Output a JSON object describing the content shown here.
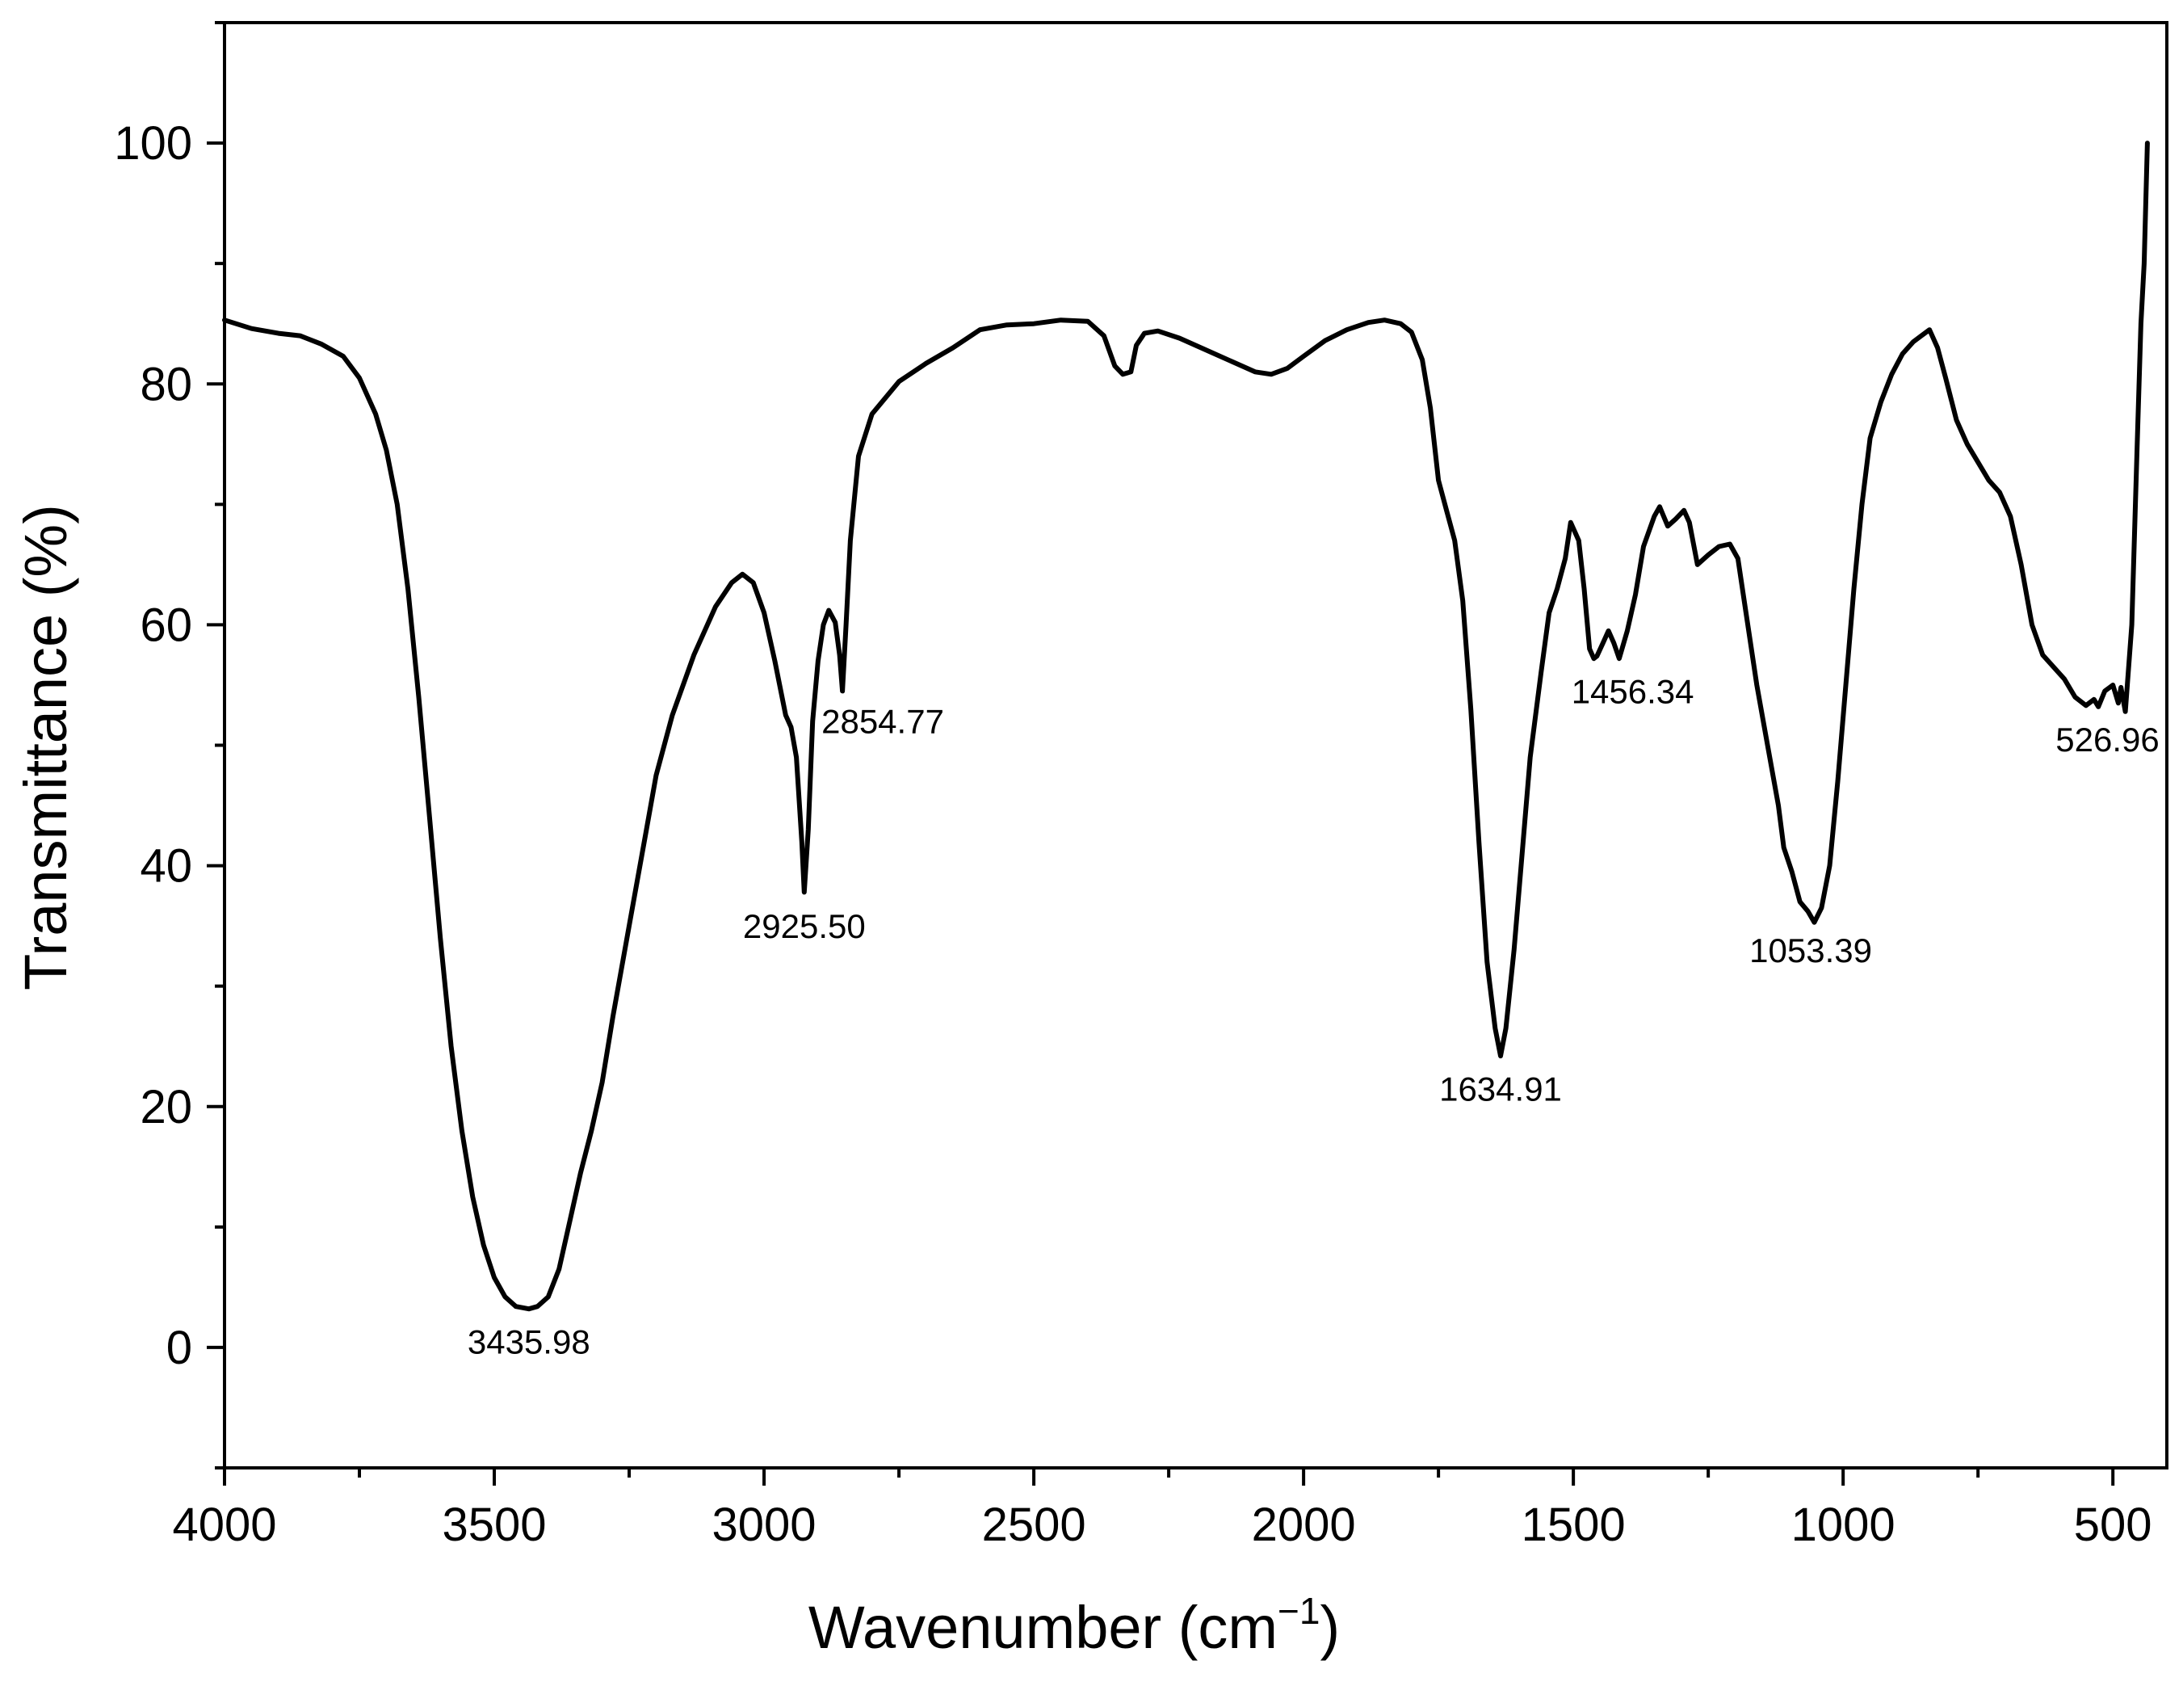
{
  "chart_data": {
    "type": "line",
    "title": "",
    "xlabel": "Wavenumber",
    "xlabel_unit": "(cm",
    "xlabel_unit_sup": "−1",
    "xlabel_unit_close": ")",
    "ylabel": "Transmittance (%)",
    "xlim": [
      4000,
      400
    ],
    "ylim": [
      -10,
      110
    ],
    "x_ticks": [
      4000,
      3500,
      3000,
      2500,
      2000,
      1500,
      1000,
      500
    ],
    "x_tick_labels": [
      "4000",
      "3500",
      "3000",
      "2500",
      "2000",
      "1500",
      "1000",
      "500"
    ],
    "y_ticks": [
      0,
      20,
      40,
      60,
      80,
      100
    ],
    "y_tick_labels": [
      "0",
      "20",
      "40",
      "60",
      "80",
      "100"
    ],
    "grid": false,
    "legend": "none",
    "series": [
      {
        "name": "FTIR spectrum",
        "color": "#000000",
        "points": [
          [
            4000,
            85.3
          ],
          [
            3950,
            84.6
          ],
          [
            3900,
            84.2
          ],
          [
            3860,
            84.0
          ],
          [
            3820,
            83.3
          ],
          [
            3780,
            82.3
          ],
          [
            3750,
            80.5
          ],
          [
            3720,
            77.5
          ],
          [
            3700,
            74.5
          ],
          [
            3680,
            70.0
          ],
          [
            3660,
            63.0
          ],
          [
            3640,
            54.0
          ],
          [
            3620,
            44.0
          ],
          [
            3600,
            34.0
          ],
          [
            3580,
            25.0
          ],
          [
            3560,
            18.0
          ],
          [
            3540,
            12.5
          ],
          [
            3520,
            8.5
          ],
          [
            3500,
            5.8
          ],
          [
            3480,
            4.2
          ],
          [
            3460,
            3.4
          ],
          [
            3436,
            3.2
          ],
          [
            3420,
            3.4
          ],
          [
            3400,
            4.2
          ],
          [
            3380,
            6.5
          ],
          [
            3360,
            10.5
          ],
          [
            3340,
            14.5
          ],
          [
            3320,
            18.0
          ],
          [
            3300,
            22.0
          ],
          [
            3280,
            27.5
          ],
          [
            3250,
            35.0
          ],
          [
            3220,
            42.5
          ],
          [
            3200,
            47.5
          ],
          [
            3170,
            52.5
          ],
          [
            3130,
            57.5
          ],
          [
            3090,
            61.5
          ],
          [
            3060,
            63.5
          ],
          [
            3040,
            64.2
          ],
          [
            3020,
            63.5
          ],
          [
            3000,
            61.0
          ],
          [
            2980,
            57.0
          ],
          [
            2960,
            52.5
          ],
          [
            2950,
            51.5
          ],
          [
            2940,
            49.0
          ],
          [
            2930,
            42.0
          ],
          [
            2925.5,
            37.8
          ],
          [
            2918,
            43.0
          ],
          [
            2910,
            52.0
          ],
          [
            2900,
            57.0
          ],
          [
            2890,
            60.0
          ],
          [
            2880,
            61.2
          ],
          [
            2868,
            60.2
          ],
          [
            2860,
            57.5
          ],
          [
            2854.8,
            54.5
          ],
          [
            2848,
            60.0
          ],
          [
            2840,
            67.0
          ],
          [
            2825,
            74.0
          ],
          [
            2800,
            77.5
          ],
          [
            2750,
            80.2
          ],
          [
            2700,
            81.7
          ],
          [
            2650,
            83.0
          ],
          [
            2600,
            84.5
          ],
          [
            2550,
            84.9
          ],
          [
            2500,
            85.0
          ],
          [
            2450,
            85.3
          ],
          [
            2400,
            85.2
          ],
          [
            2370,
            84.0
          ],
          [
            2350,
            81.5
          ],
          [
            2335,
            80.8
          ],
          [
            2320,
            81.0
          ],
          [
            2310,
            83.2
          ],
          [
            2295,
            84.2
          ],
          [
            2270,
            84.4
          ],
          [
            2230,
            83.8
          ],
          [
            2180,
            82.8
          ],
          [
            2130,
            81.8
          ],
          [
            2090,
            81.0
          ],
          [
            2060,
            80.8
          ],
          [
            2030,
            81.3
          ],
          [
            2000,
            82.3
          ],
          [
            1960,
            83.6
          ],
          [
            1920,
            84.5
          ],
          [
            1880,
            85.1
          ],
          [
            1850,
            85.3
          ],
          [
            1820,
            85.0
          ],
          [
            1800,
            84.3
          ],
          [
            1780,
            82.0
          ],
          [
            1765,
            78.0
          ],
          [
            1750,
            72.0
          ],
          [
            1735,
            69.5
          ],
          [
            1720,
            67.0
          ],
          [
            1705,
            62.0
          ],
          [
            1690,
            53.0
          ],
          [
            1675,
            42.0
          ],
          [
            1660,
            32.0
          ],
          [
            1645,
            26.5
          ],
          [
            1635,
            24.2
          ],
          [
            1625,
            26.5
          ],
          [
            1610,
            33.0
          ],
          [
            1595,
            41.0
          ],
          [
            1580,
            49.0
          ],
          [
            1560,
            56.0
          ],
          [
            1545,
            61.0
          ],
          [
            1530,
            63.0
          ],
          [
            1515,
            65.5
          ],
          [
            1505,
            68.5
          ],
          [
            1490,
            67.0
          ],
          [
            1480,
            63.0
          ],
          [
            1470,
            58.0
          ],
          [
            1462,
            57.2
          ],
          [
            1456.3,
            57.4
          ],
          [
            1445,
            58.5
          ],
          [
            1435,
            59.5
          ],
          [
            1425,
            58.5
          ],
          [
            1415,
            57.2
          ],
          [
            1400,
            59.5
          ],
          [
            1385,
            62.5
          ],
          [
            1370,
            66.5
          ],
          [
            1350,
            69.0
          ],
          [
            1340,
            69.8
          ],
          [
            1325,
            68.2
          ],
          [
            1310,
            68.8
          ],
          [
            1295,
            69.5
          ],
          [
            1285,
            68.5
          ],
          [
            1270,
            65.0
          ],
          [
            1250,
            65.8
          ],
          [
            1230,
            66.5
          ],
          [
            1210,
            66.7
          ],
          [
            1195,
            65.5
          ],
          [
            1180,
            61.0
          ],
          [
            1160,
            55.0
          ],
          [
            1140,
            50.0
          ],
          [
            1120,
            45.0
          ],
          [
            1110,
            41.5
          ],
          [
            1095,
            39.5
          ],
          [
            1080,
            37.0
          ],
          [
            1065,
            36.2
          ],
          [
            1053.4,
            35.3
          ],
          [
            1040,
            36.5
          ],
          [
            1025,
            40.0
          ],
          [
            1010,
            47.0
          ],
          [
            995,
            55.0
          ],
          [
            980,
            63.0
          ],
          [
            965,
            70.0
          ],
          [
            950,
            75.5
          ],
          [
            930,
            78.5
          ],
          [
            910,
            80.8
          ],
          [
            890,
            82.5
          ],
          [
            870,
            83.5
          ],
          [
            855,
            84.0
          ],
          [
            840,
            84.5
          ],
          [
            825,
            83.0
          ],
          [
            810,
            80.5
          ],
          [
            790,
            77.0
          ],
          [
            770,
            75.0
          ],
          [
            750,
            73.5
          ],
          [
            730,
            72.0
          ],
          [
            710,
            71.0
          ],
          [
            690,
            69.0
          ],
          [
            670,
            65.0
          ],
          [
            650,
            60.0
          ],
          [
            630,
            57.5
          ],
          [
            610,
            56.5
          ],
          [
            590,
            55.5
          ],
          [
            570,
            54.0
          ],
          [
            550,
            53.3
          ],
          [
            535,
            53.8
          ],
          [
            527,
            53.2
          ],
          [
            515,
            54.5
          ],
          [
            500,
            55.0
          ],
          [
            490,
            53.5
          ],
          [
            485,
            54.8
          ],
          [
            477,
            52.8
          ],
          [
            465,
            60.0
          ],
          [
            455,
            75.0
          ],
          [
            448,
            85.0
          ],
          [
            442,
            90.0
          ],
          [
            436,
            100.0
          ]
        ]
      }
    ],
    "annotations": [
      {
        "text": "3435.98",
        "x": 3435.98,
        "y": -0.5
      },
      {
        "text": "2925.50",
        "x": 2925.5,
        "y": 34.0
      },
      {
        "text": "2854.77",
        "x": 2780,
        "y": 51.0
      },
      {
        "text": "1634.91",
        "x": 1634.91,
        "y": 20.5
      },
      {
        "text": "1456.34",
        "x": 1390,
        "y": 53.5
      },
      {
        "text": "1053.39",
        "x": 1060,
        "y": 32.0
      },
      {
        "text": "526.96",
        "x": 510,
        "y": 49.5
      }
    ]
  }
}
